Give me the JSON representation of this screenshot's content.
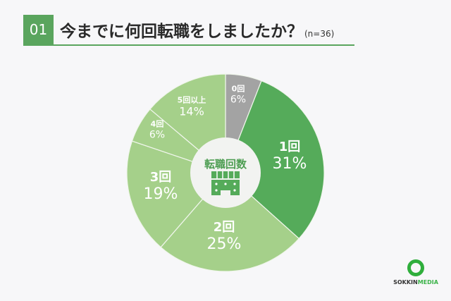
{
  "header": {
    "number": "01",
    "title": "今までに何回転職をしましたか？",
    "sample": "(n=36)"
  },
  "center": {
    "label": "転職回数",
    "icon": "building-icon"
  },
  "logo": {
    "part1": "SOKKIN",
    "part2": "MEDIA"
  },
  "colors": {
    "accent": "#5aa55e",
    "gray": "#a3a3a3",
    "dark_green": "#55ab5a",
    "light_green": "#a5d08a"
  },
  "chart_data": {
    "type": "pie",
    "title": "今までに何回転職をしましたか？",
    "subtitle": "(n=36)",
    "center_label": "転職回数",
    "categories": [
      "0回",
      "1回",
      "2回",
      "3回",
      "4回",
      "5回以上"
    ],
    "values": [
      6,
      31,
      25,
      19,
      6,
      14
    ],
    "unit": "%",
    "labels": {
      "s0": {
        "c": "0回",
        "p": "6%"
      },
      "s1": {
        "c": "1回",
        "p": "31%"
      },
      "s2": {
        "c": "2回",
        "p": "25%"
      },
      "s3": {
        "c": "3回",
        "p": "19%"
      },
      "s4": {
        "c": "4回",
        "p": "6%"
      },
      "s5": {
        "c": "5回以上",
        "p": "14%"
      }
    }
  }
}
